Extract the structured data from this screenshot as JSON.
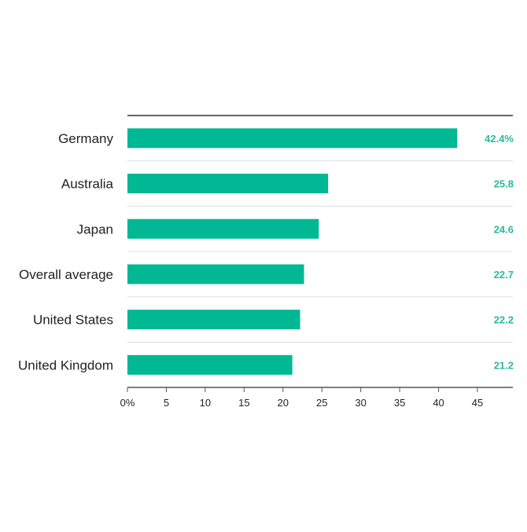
{
  "chart_data": {
    "type": "bar",
    "orientation": "horizontal",
    "title": "",
    "xlabel": "",
    "ylabel": "",
    "categories": [
      "Germany",
      "Australia",
      "Japan",
      "Overall average",
      "United States",
      "United Kingdom"
    ],
    "values": [
      42.4,
      25.8,
      24.6,
      22.7,
      22.2,
      21.2
    ],
    "value_labels": [
      "42.4%",
      "25.8",
      "24.6",
      "22.7",
      "22.2",
      "21.2"
    ],
    "xlim": [
      0,
      47
    ],
    "x_ticks": [
      0,
      5,
      10,
      15,
      20,
      25,
      30,
      35,
      40,
      45
    ],
    "x_tick_labels": [
      "0%",
      "5",
      "10",
      "15",
      "20",
      "25",
      "30",
      "35",
      "40",
      "45"
    ],
    "grid": false,
    "legend": "none",
    "colors": {
      "bar": "#00b894",
      "value_label": "#2bb89a",
      "axis": "#555555",
      "separator": "#dddddd"
    }
  }
}
